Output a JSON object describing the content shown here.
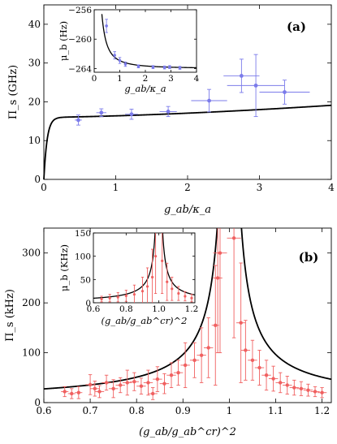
{
  "chart_data": [
    {
      "id": "a",
      "type": "scatter",
      "panel_tag": "(a)",
      "xlabel": "g_ab/κ_a",
      "ylabel": "Π_s (GHz)",
      "xlim": [
        0,
        4
      ],
      "ylim": [
        0,
        45
      ],
      "xticks": [
        "0",
        "1",
        "2",
        "3",
        "4"
      ],
      "yticks": [
        "0",
        "10",
        "20",
        "30",
        "40"
      ],
      "xtick_values": [
        0,
        1,
        2,
        3,
        4
      ],
      "ytick_values": [
        0,
        10,
        20,
        30,
        40
      ],
      "points": [
        {
          "x": 0.48,
          "y": 15.3,
          "xerr": 0.05,
          "yerr": 1.3
        },
        {
          "x": 0.8,
          "y": 17.2,
          "xerr": 0.07,
          "yerr": 1.0
        },
        {
          "x": 1.22,
          "y": 16.8,
          "xerr": 0.09,
          "yerr": 1.3
        },
        {
          "x": 1.73,
          "y": 17.5,
          "xerr": 0.12,
          "yerr": 1.3
        },
        {
          "x": 2.3,
          "y": 20.3,
          "xerr": 0.25,
          "yerr": 2.9
        },
        {
          "x": 2.75,
          "y": 26.7,
          "xerr": 0.25,
          "yerr": 4.3
        },
        {
          "x": 2.95,
          "y": 24.2,
          "xerr": 0.4,
          "yerr": 8.0
        },
        {
          "x": 3.35,
          "y": 22.5,
          "xerr": 0.35,
          "yerr": 3.1
        }
      ],
      "inset": {
        "xlabel": "g_ab/κ_a",
        "ylabel": "μ_b (Hz)",
        "xlim": [
          0,
          4
        ],
        "ylim": [
          -264.5,
          -256
        ],
        "xticks": [
          "0",
          "1",
          "2",
          "3",
          "4"
        ],
        "yticks": [
          "−256",
          "−260",
          "−264"
        ],
        "xtick_values": [
          0,
          1,
          2,
          3,
          4
        ],
        "ytick_values": [
          -256,
          -260,
          -264
        ],
        "points": [
          {
            "x": 0.48,
            "y": -258.2,
            "yerr": 0.9
          },
          {
            "x": 0.8,
            "y": -262.2,
            "yerr": 0.5
          },
          {
            "x": 1.0,
            "y": -262.9,
            "yerr": 0.4
          },
          {
            "x": 1.22,
            "y": -263.4,
            "yerr": 0.3
          },
          {
            "x": 1.73,
            "y": -263.7,
            "yerr": 0.2
          },
          {
            "x": 2.3,
            "y": -263.8,
            "yerr": 0.2
          },
          {
            "x": 2.75,
            "y": -263.85,
            "yerr": 0.2
          },
          {
            "x": 2.95,
            "y": -263.8,
            "yerr": 0.2
          },
          {
            "x": 3.35,
            "y": -263.9,
            "yerr": 0.2
          }
        ]
      },
      "colors": {
        "points": "#7b7bea",
        "fit": "#000000"
      }
    },
    {
      "id": "b",
      "type": "scatter",
      "panel_tag": "(b)",
      "xlabel": "(g_ab/g_ab^cr)^2",
      "ylabel": "Π_s (kHz)",
      "xlim": [
        0.6,
        1.22
      ],
      "ylim": [
        0,
        350
      ],
      "xticks": [
        "0.6",
        "0.7",
        "0.8",
        "0.9",
        "1",
        "1.1",
        "1.2"
      ],
      "yticks": [
        "0",
        "100",
        "200",
        "300"
      ],
      "xtick_values": [
        0.6,
        0.7,
        0.8,
        0.9,
        1.0,
        1.1,
        1.2
      ],
      "ytick_values": [
        0,
        100,
        200,
        300
      ],
      "points": [
        {
          "x": 0.645,
          "y": 22,
          "xerr": 0.008,
          "yerr": 10
        },
        {
          "x": 0.66,
          "y": 18,
          "xerr": 0.008,
          "yerr": 10
        },
        {
          "x": 0.675,
          "y": 20,
          "xerr": 0.008,
          "yerr": 12
        },
        {
          "x": 0.7,
          "y": 36,
          "xerr": 0.01,
          "yerr": 20
        },
        {
          "x": 0.71,
          "y": 28,
          "xerr": 0.01,
          "yerr": 15
        },
        {
          "x": 0.72,
          "y": 22,
          "xerr": 0.01,
          "yerr": 12
        },
        {
          "x": 0.735,
          "y": 40,
          "xerr": 0.01,
          "yerr": 15
        },
        {
          "x": 0.75,
          "y": 28,
          "xerr": 0.01,
          "yerr": 18
        },
        {
          "x": 0.765,
          "y": 35,
          "xerr": 0.01,
          "yerr": 15
        },
        {
          "x": 0.78,
          "y": 40,
          "xerr": 0.01,
          "yerr": 25
        },
        {
          "x": 0.795,
          "y": 42,
          "xerr": 0.01,
          "yerr": 18
        },
        {
          "x": 0.81,
          "y": 33,
          "xerr": 0.01,
          "yerr": 16
        },
        {
          "x": 0.825,
          "y": 40,
          "xerr": 0.01,
          "yerr": 25
        },
        {
          "x": 0.835,
          "y": 18,
          "xerr": 0.01,
          "yerr": 12
        },
        {
          "x": 0.845,
          "y": 47,
          "xerr": 0.01,
          "yerr": 25
        },
        {
          "x": 0.86,
          "y": 38,
          "xerr": 0.01,
          "yerr": 20
        },
        {
          "x": 0.875,
          "y": 55,
          "xerr": 0.01,
          "yerr": 25
        },
        {
          "x": 0.89,
          "y": 60,
          "xerr": 0.01,
          "yerr": 25
        },
        {
          "x": 0.905,
          "y": 75,
          "xerr": 0.01,
          "yerr": 45
        },
        {
          "x": 0.925,
          "y": 85,
          "xerr": 0.01,
          "yerr": 35
        },
        {
          "x": 0.94,
          "y": 95,
          "xerr": 0.01,
          "yerr": 55
        },
        {
          "x": 0.955,
          "y": 110,
          "xerr": 0.01,
          "yerr": 60
        },
        {
          "x": 0.97,
          "y": 155,
          "xerr": 0.008,
          "yerr": 120
        },
        {
          "x": 0.975,
          "y": 250,
          "xerr": 0.01,
          "yerr": 150
        },
        {
          "x": 0.98,
          "y": 300,
          "xerr": 0.015,
          "yerr": 200
        },
        {
          "x": 1.01,
          "y": 330,
          "xerr": 0.015,
          "yerr": 200
        },
        {
          "x": 1.025,
          "y": 160,
          "xerr": 0.01,
          "yerr": 120
        },
        {
          "x": 1.035,
          "y": 105,
          "xerr": 0.01,
          "yerr": 60
        },
        {
          "x": 1.05,
          "y": 85,
          "xerr": 0.01,
          "yerr": 40
        },
        {
          "x": 1.065,
          "y": 70,
          "xerr": 0.01,
          "yerr": 35
        },
        {
          "x": 1.08,
          "y": 55,
          "xerr": 0.01,
          "yerr": 30
        },
        {
          "x": 1.095,
          "y": 48,
          "xerr": 0.01,
          "yerr": 25
        },
        {
          "x": 1.11,
          "y": 40,
          "xerr": 0.01,
          "yerr": 20
        },
        {
          "x": 1.125,
          "y": 35,
          "xerr": 0.01,
          "yerr": 18
        },
        {
          "x": 1.14,
          "y": 30,
          "xerr": 0.01,
          "yerr": 15
        },
        {
          "x": 1.155,
          "y": 28,
          "xerr": 0.01,
          "yerr": 14
        },
        {
          "x": 1.17,
          "y": 25,
          "xerr": 0.01,
          "yerr": 12
        },
        {
          "x": 1.185,
          "y": 22,
          "xerr": 0.01,
          "yerr": 10
        },
        {
          "x": 1.2,
          "y": 20,
          "xerr": 0.01,
          "yerr": 10
        }
      ],
      "inset": {
        "xlabel": "(g_ab/g_ab^cr)^2",
        "ylabel": "μ_b (KHz)",
        "xlim": [
          0.6,
          1.22
        ],
        "ylim": [
          0,
          150
        ],
        "xticks": [
          "0.6",
          "0.8",
          "1.0",
          "1.2"
        ],
        "yticks": [
          "0",
          "50",
          "100",
          "150"
        ],
        "xtick_values": [
          0.6,
          0.8,
          1.0,
          1.2
        ],
        "ytick_values": [
          0,
          50,
          100,
          150
        ],
        "points": [
          {
            "x": 0.65,
            "y": 8,
            "yerr": 6
          },
          {
            "x": 0.7,
            "y": 10,
            "yerr": 8
          },
          {
            "x": 0.75,
            "y": 12,
            "yerr": 10
          },
          {
            "x": 0.8,
            "y": 15,
            "yerr": 12
          },
          {
            "x": 0.85,
            "y": 18,
            "yerr": 20
          },
          {
            "x": 0.9,
            "y": 25,
            "yerr": 30
          },
          {
            "x": 0.93,
            "y": 35,
            "yerr": 40
          },
          {
            "x": 0.96,
            "y": 55,
            "yerr": 60
          },
          {
            "x": 0.98,
            "y": 100,
            "yerr": 80
          },
          {
            "x": 1.02,
            "y": 90,
            "yerr": 70
          },
          {
            "x": 1.05,
            "y": 45,
            "yerr": 40
          },
          {
            "x": 1.08,
            "y": 30,
            "yerr": 25
          },
          {
            "x": 1.12,
            "y": 20,
            "yerr": 15
          },
          {
            "x": 1.16,
            "y": 14,
            "yerr": 10
          },
          {
            "x": 1.2,
            "y": 10,
            "yerr": 8
          }
        ]
      },
      "colors": {
        "points": "#f06060",
        "fit": "#000000"
      }
    }
  ]
}
